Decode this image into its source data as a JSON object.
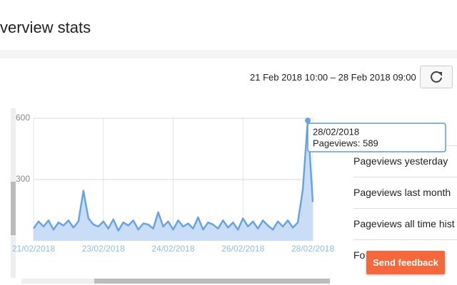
{
  "header": {
    "title": "verview stats"
  },
  "date_range": "21 Feb 2018 10:00 – 28 Feb 2018 09:00",
  "chart_data": {
    "type": "area",
    "color": "#6aa3e3",
    "fill": "#c9def6",
    "values": [
      60,
      95,
      70,
      100,
      55,
      90,
      75,
      100,
      65,
      95,
      245,
      110,
      80,
      70,
      95,
      60,
      105,
      50,
      90,
      75,
      100,
      55,
      85,
      80,
      60,
      140,
      70,
      95,
      55,
      100,
      70,
      85,
      60,
      115,
      55,
      90,
      80,
      60,
      100,
      65,
      90,
      55,
      110,
      70,
      95,
      60,
      100,
      75,
      55,
      95,
      70,
      100,
      65,
      90,
      250,
      589,
      190
    ],
    "ylim": [
      0,
      600
    ],
    "yticks": [
      300,
      600
    ],
    "xlim": [
      0,
      56
    ],
    "xticks": [
      {
        "value": 0,
        "label": "21/02/2018"
      },
      {
        "value": 14,
        "label": "23/02/2018"
      },
      {
        "value": 28,
        "label": "24/02/2018"
      },
      {
        "value": 42,
        "label": "26/02/2018"
      },
      {
        "value": 56,
        "label": "28/02/2018"
      }
    ],
    "grid": true,
    "tooltip": {
      "date": "28/02/2018",
      "label": "Pageviews: 589"
    }
  },
  "stats": [
    "Pageviews yesterday",
    "Pageviews last month",
    "Pageviews all time hist",
    "Fo"
  ],
  "feedback": "Send feedback"
}
